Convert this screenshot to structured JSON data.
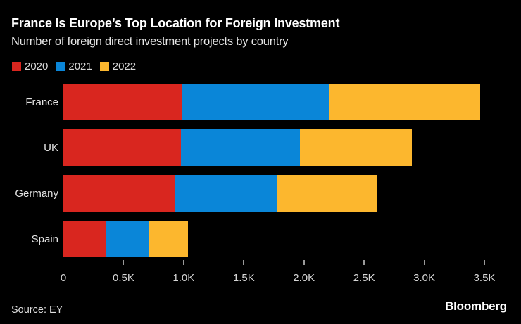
{
  "title": "France Is Europe’s Top Location for Foreign Investment",
  "subtitle": "Number of foreign direct investment projects by country",
  "source": "Source: EY",
  "brand": "Bloomberg",
  "colors": {
    "background": "#000000",
    "title_text": "#ffffff",
    "secondary_text": "#e6e6e6",
    "axis_text": "#d6d6d6",
    "tick_mark": "#9a9a9a",
    "series_2020": "#d9261f",
    "series_2021": "#0a86d8",
    "series_2022": "#fcb72e"
  },
  "chart_data": {
    "type": "bar",
    "orientation": "horizontal",
    "stacked": true,
    "grid": false,
    "legend_position": "top-left",
    "title": "France Is Europe’s Top Location for Foreign Investment",
    "subtitle": "Number of foreign direct investment projects by country",
    "xlabel": "",
    "ylabel": "",
    "xlim": [
      0,
      3500
    ],
    "categories": [
      "France",
      "UK",
      "Germany",
      "Spain"
    ],
    "series": [
      {
        "name": "2020",
        "color": "#d9261f",
        "values": [
          985,
          975,
          930,
          354
        ]
      },
      {
        "name": "2021",
        "color": "#0a86d8",
        "values": [
          1222,
          993,
          841,
          361
        ]
      },
      {
        "name": "2022",
        "color": "#fcb72e",
        "values": [
          1259,
          929,
          832,
          324
        ]
      }
    ],
    "totals": [
      3466,
      2897,
      2603,
      1039
    ],
    "x_ticks": [
      {
        "value": 0,
        "label": "0",
        "mark": false
      },
      {
        "value": 500,
        "label": "0.5K",
        "mark": true
      },
      {
        "value": 1000,
        "label": "1.0K",
        "mark": true
      },
      {
        "value": 1500,
        "label": "1.5K",
        "mark": true
      },
      {
        "value": 2000,
        "label": "2.0K",
        "mark": true
      },
      {
        "value": 2500,
        "label": "2.5K",
        "mark": true
      },
      {
        "value": 3000,
        "label": "3.0K",
        "mark": true
      },
      {
        "value": 3500,
        "label": "3.5K",
        "mark": true
      }
    ]
  }
}
